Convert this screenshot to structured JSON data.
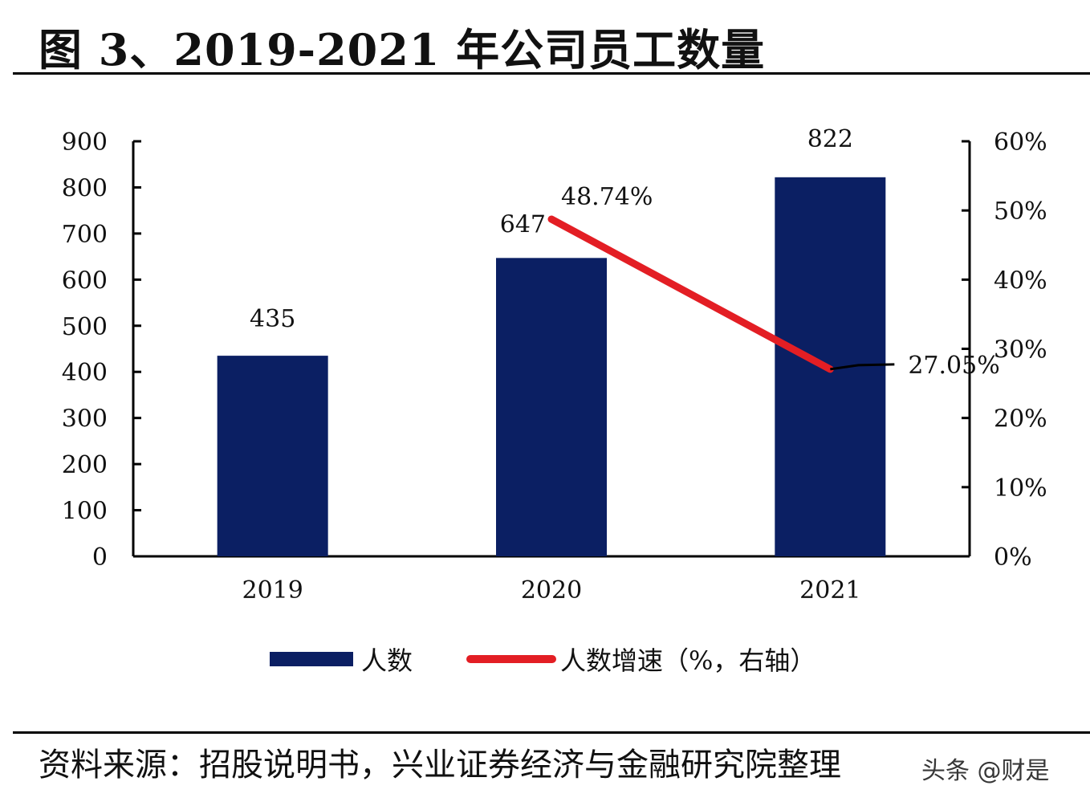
{
  "title": "图 3、2019-2021 年公司员工数量",
  "source": "资料来源：招股说明书，兴业证券经济与金融研究院整理",
  "watermark": "头条 @财是",
  "colors": {
    "bar": "#0b1f63",
    "line": "#e31e24",
    "axis": "#000000",
    "leader": "#000000"
  },
  "chart_data": {
    "type": "bar",
    "title": "2019-2021 年公司员工数量",
    "categories": [
      "2019",
      "2020",
      "2021"
    ],
    "series": [
      {
        "name": "人数",
        "type": "bar",
        "axis": "left",
        "values": [
          435,
          647,
          822
        ],
        "labels": [
          "435",
          "647",
          "822"
        ]
      },
      {
        "name": "人数增速（%，右轴）",
        "type": "line",
        "axis": "right",
        "values": [
          null,
          48.74,
          27.05
        ],
        "labels": [
          "",
          "48.74%",
          "27.05%"
        ]
      }
    ],
    "y_left": {
      "min": 0,
      "max": 900,
      "ticks": [
        "0",
        "100",
        "200",
        "300",
        "400",
        "500",
        "600",
        "700",
        "800",
        "900"
      ]
    },
    "y_right": {
      "min": 0,
      "max": 60,
      "ticks": [
        "0%",
        "10%",
        "20%",
        "30%",
        "40%",
        "50%",
        "60%"
      ]
    },
    "legend": {
      "position": "bottom",
      "items": [
        "人数",
        "人数增速（%，右轴）"
      ]
    },
    "grid": false
  }
}
